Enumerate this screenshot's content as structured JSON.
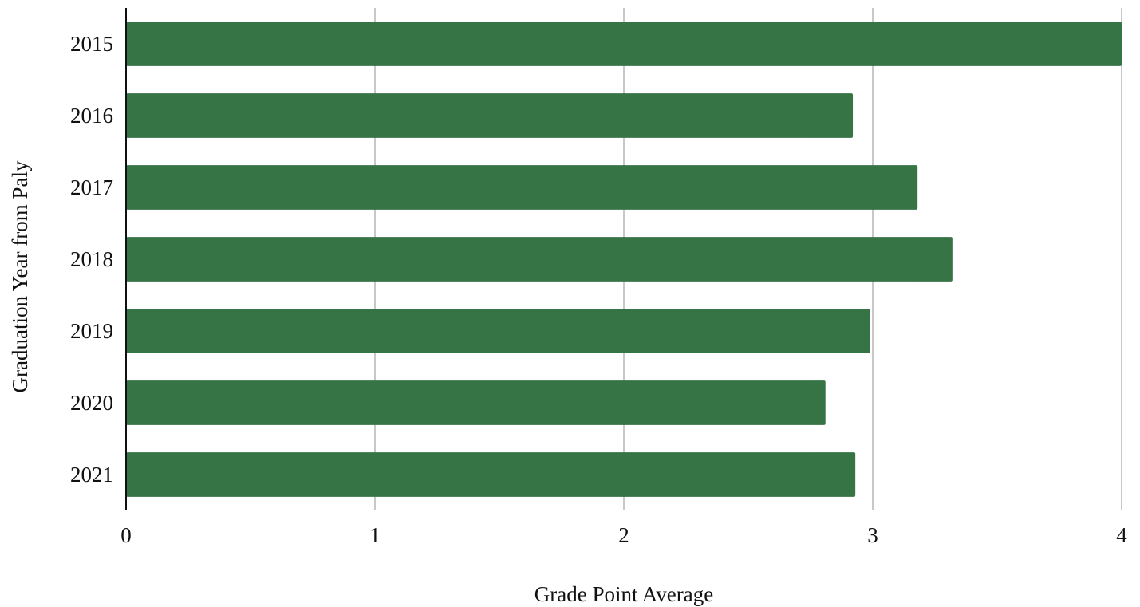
{
  "chart_data": {
    "type": "bar",
    "orientation": "horizontal",
    "title": "",
    "xlabel": "Grade Point Average",
    "ylabel": "Graduation Year from Paly",
    "categories": [
      "2015",
      "2016",
      "2017",
      "2018",
      "2019",
      "2020",
      "2021"
    ],
    "values": [
      4.0,
      2.92,
      3.18,
      3.32,
      2.99,
      2.81,
      2.93
    ],
    "xlim": [
      0,
      4
    ],
    "xticks": [
      "0",
      "1",
      "2",
      "3",
      "4"
    ],
    "grid": "vertical",
    "legend": "none",
    "colors": {
      "bar": "#367446",
      "grid": "#c8c8c8",
      "axis": "#111111"
    }
  }
}
